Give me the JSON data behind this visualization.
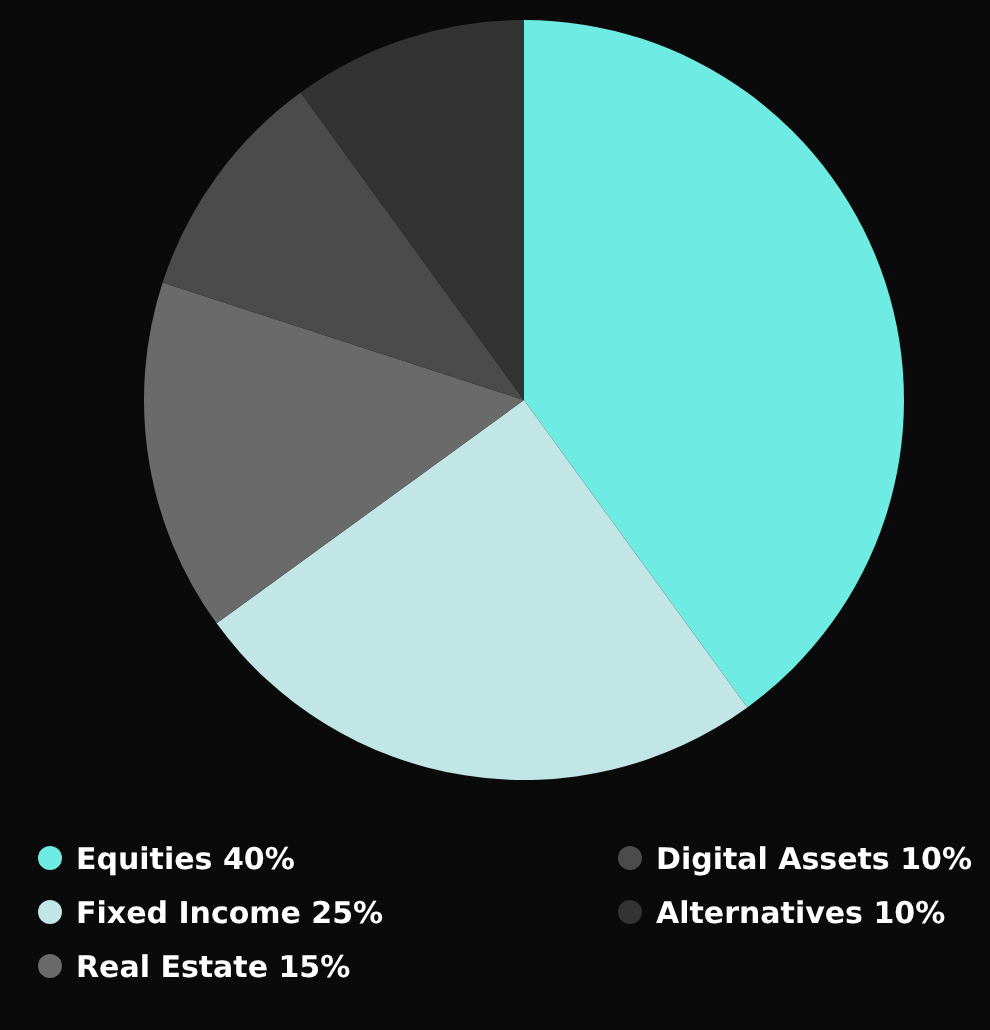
{
  "chart_data": {
    "type": "pie",
    "categories": [
      "Equities",
      "Fixed Income",
      "Real Estate",
      "Digital Assets",
      "Alternatives"
    ],
    "values": [
      40,
      25,
      15,
      10,
      10
    ],
    "value_labels": [
      "40%",
      "25%",
      "15%",
      "10%",
      "10%"
    ],
    "colors": [
      "#6eebe3",
      "#c2e5e5",
      "#6a6a6a",
      "#4b4b4b",
      "#333333"
    ],
    "legend": "bottom"
  }
}
